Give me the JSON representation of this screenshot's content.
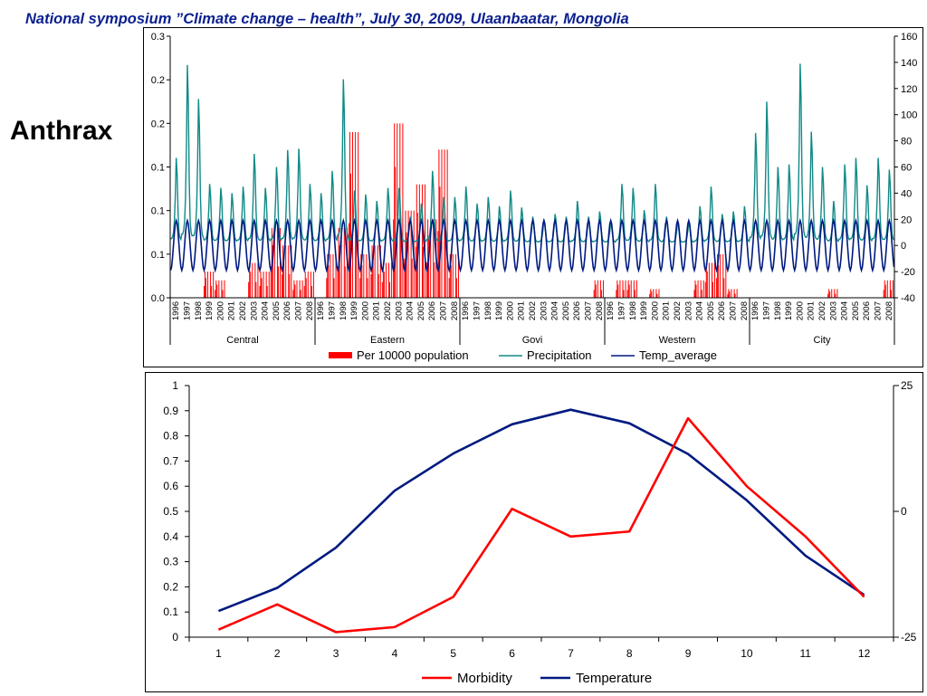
{
  "header": {
    "text": "National symposium ”Climate change – health”, July 30, 2009, Ulaanbaatar, Mongolia"
  },
  "side_title": "Anthrax",
  "colors": {
    "red": "#ff0000",
    "teal": "#108a87",
    "navy": "#001a80",
    "header_blue": "#0a1f8f"
  },
  "chart_data": [
    {
      "type": "bar",
      "subtype": "combo bar + line, dual y-axis, grouped categories",
      "y_left_ticks": [
        "0.0",
        "0.1",
        "0.1",
        "0.1",
        "0.2",
        "0.2",
        "0.3"
      ],
      "y_left_range": [
        0,
        0.3
      ],
      "y_right_ticks": [
        "-40",
        "-20",
        "0",
        "20",
        "40",
        "60",
        "80",
        "100",
        "120",
        "140",
        "160"
      ],
      "y_right_range": [
        -40,
        160
      ],
      "years": [
        "1996",
        "1997",
        "1998",
        "1999",
        "2000",
        "2001",
        "2002",
        "2003",
        "2004",
        "2005",
        "2006",
        "2007",
        "2008"
      ],
      "regions": [
        "Central",
        "Eastern",
        "Govi",
        "Western",
        "City"
      ],
      "series": [
        {
          "name": "Per 10000 population",
          "chart_type": "bar",
          "axis": "left",
          "values": [
            [
              0,
              0,
              0,
              0.03,
              0.02,
              0,
              0,
              0.04,
              0.03,
              0.08,
              0.06,
              0.02,
              0.03
            ],
            [
              0,
              0.05,
              0.08,
              0.19,
              0.05,
              0.06,
              0.04,
              0.2,
              0.1,
              0.13,
              0.09,
              0.17,
              0.05
            ],
            [
              0,
              0,
              0,
              0,
              0,
              0,
              0,
              0,
              0,
              0,
              0,
              0,
              0.02
            ],
            [
              0,
              0.02,
              0.02,
              0,
              0.01,
              0,
              0,
              0,
              0.02,
              0.04,
              0.05,
              0.01,
              0
            ],
            [
              0,
              0,
              0,
              0,
              0,
              0,
              0,
              0.01,
              0,
              0,
              0,
              0,
              0.02
            ]
          ]
        },
        {
          "name": "Precipitation",
          "chart_type": "line",
          "axis": "right",
          "resolution": "monthly",
          "annual_peak": [
            [
              65,
              136,
              110,
              45,
              42,
              38,
              43,
              68,
              42,
              58,
              71,
              72,
              45
            ],
            [
              38,
              55,
              125,
              40,
              37,
              32,
              42,
              42,
              20,
              30,
              55,
              35,
              35
            ],
            [
              43,
              30,
              35,
              28,
              40,
              27,
              20,
              18,
              22,
              20,
              32,
              20,
              24
            ],
            [
              16,
              45,
              42,
              25,
              45,
              20,
              16,
              16,
              28,
              43,
              22,
              24,
              28
            ],
            [
              84,
              108,
              58,
              60,
              137,
              85,
              58,
              32,
              60,
              65,
              44,
              65,
              56
            ]
          ]
        },
        {
          "name": "Temp_average",
          "chart_type": "line",
          "axis": "right",
          "resolution": "monthly",
          "january_min": -19,
          "july_max": 19
        }
      ],
      "legend_position": "bottom",
      "grid": false
    },
    {
      "type": "line",
      "x": [
        1,
        2,
        3,
        4,
        5,
        6,
        7,
        8,
        9,
        10,
        11,
        12
      ],
      "y_left_ticks": [
        "0",
        "0.1",
        "0.2",
        "0.3",
        "0.4",
        "0.5",
        "0.6",
        "0.7",
        "0.8",
        "0.9",
        "1"
      ],
      "y_left_range": [
        0,
        1
      ],
      "y_right_ticks": [
        "-25",
        "0",
        "25"
      ],
      "y_right_range": [
        -25,
        25
      ],
      "series": [
        {
          "name": "Morbidity",
          "axis": "left",
          "values": [
            0.03,
            0.13,
            0.02,
            0.04,
            0.16,
            0.51,
            0.4,
            0.42,
            0.87,
            0.6,
            0.4,
            0.16
          ]
        },
        {
          "name": "Temperature",
          "axis": "right",
          "values": [
            -19.8,
            -15.2,
            -7.2,
            4.1,
            11.5,
            17.3,
            20.2,
            17.5,
            11.4,
            2.2,
            -8.8,
            -16.6
          ]
        }
      ],
      "legend_position": "bottom",
      "grid": false
    }
  ]
}
